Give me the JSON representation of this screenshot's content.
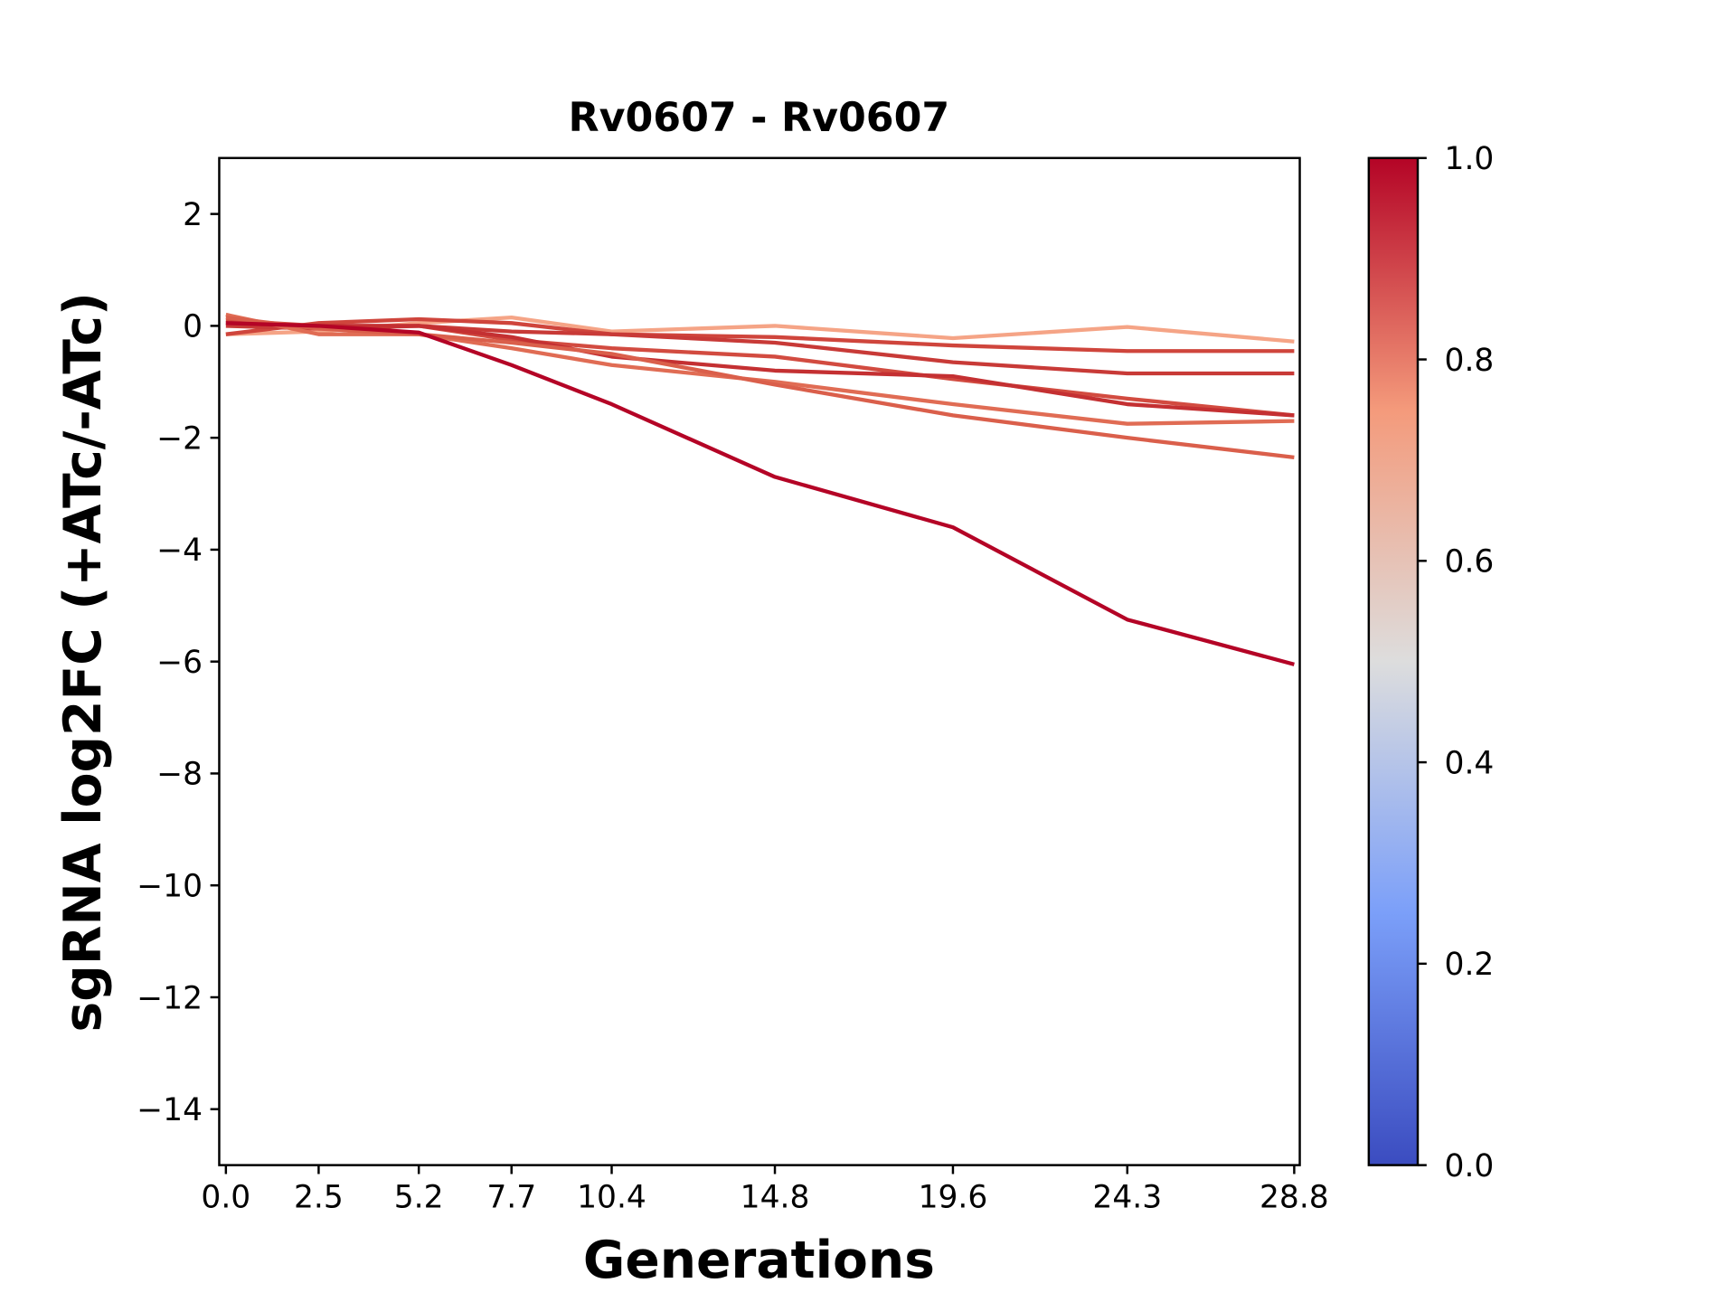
{
  "chart_data": {
    "type": "line",
    "title": "Rv0607 - Rv0607",
    "xlabel": "Generations",
    "ylabel": "sgRNA log2FC (+ATc/-ATc)",
    "x": [
      0.0,
      2.5,
      5.2,
      7.7,
      10.4,
      14.8,
      19.6,
      24.3,
      28.8
    ],
    "xtick_labels": [
      "0.0",
      "2.5",
      "5.2",
      "7.7",
      "10.4",
      "14.8",
      "19.6",
      "24.3",
      "28.8"
    ],
    "ylim": [
      -15,
      3
    ],
    "yticks": [
      2,
      0,
      -2,
      -4,
      -6,
      -8,
      -10,
      -12,
      -14
    ],
    "ytick_labels": [
      "2",
      "0",
      "−2",
      "−4",
      "−6",
      "−8",
      "−10",
      "−12",
      "−14"
    ],
    "grid": false,
    "series": [
      {
        "color": "#f5a486",
        "values": [
          -0.15,
          -0.1,
          0.05,
          0.15,
          -0.1,
          0.0,
          -0.22,
          -0.02,
          -0.28
        ]
      },
      {
        "color": "#cf453c",
        "values": [
          -0.15,
          0.05,
          0.12,
          0.05,
          -0.15,
          -0.2,
          -0.35,
          -0.45,
          -0.45
        ]
      },
      {
        "color": "#c83a37",
        "values": [
          0.0,
          -0.05,
          0.0,
          -0.1,
          -0.15,
          -0.3,
          -0.65,
          -0.85,
          -0.85
        ]
      },
      {
        "color": "#d24b40",
        "values": [
          0.1,
          0.0,
          0.0,
          -0.25,
          -0.4,
          -0.55,
          -0.95,
          -1.3,
          -1.6
        ]
      },
      {
        "color": "#c43032",
        "values": [
          0.05,
          0.0,
          0.0,
          -0.2,
          -0.55,
          -0.8,
          -0.9,
          -1.4,
          -1.6
        ]
      },
      {
        "color": "#e06c54",
        "values": [
          0.2,
          -0.15,
          -0.15,
          -0.4,
          -0.7,
          -1.0,
          -1.4,
          -1.75,
          -1.7
        ]
      },
      {
        "color": "#da5f4b",
        "values": [
          0.15,
          -0.05,
          -0.15,
          -0.3,
          -0.5,
          -1.05,
          -1.6,
          -2.0,
          -2.35
        ]
      },
      {
        "color": "#b40426",
        "values": [
          0.05,
          0.0,
          -0.12,
          -0.7,
          -1.4,
          -2.7,
          -3.6,
          -5.25,
          -6.05
        ]
      }
    ],
    "colorbar": {
      "range": [
        0.0,
        1.0
      ],
      "tick_labels": [
        "0.0",
        "0.2",
        "0.4",
        "0.6",
        "0.8",
        "1.0"
      ],
      "colormap": "coolwarm",
      "stops": [
        "#3b4cc0",
        "#7b9ff9",
        "#dddddd",
        "#f49a7b",
        "#b40426"
      ]
    }
  }
}
